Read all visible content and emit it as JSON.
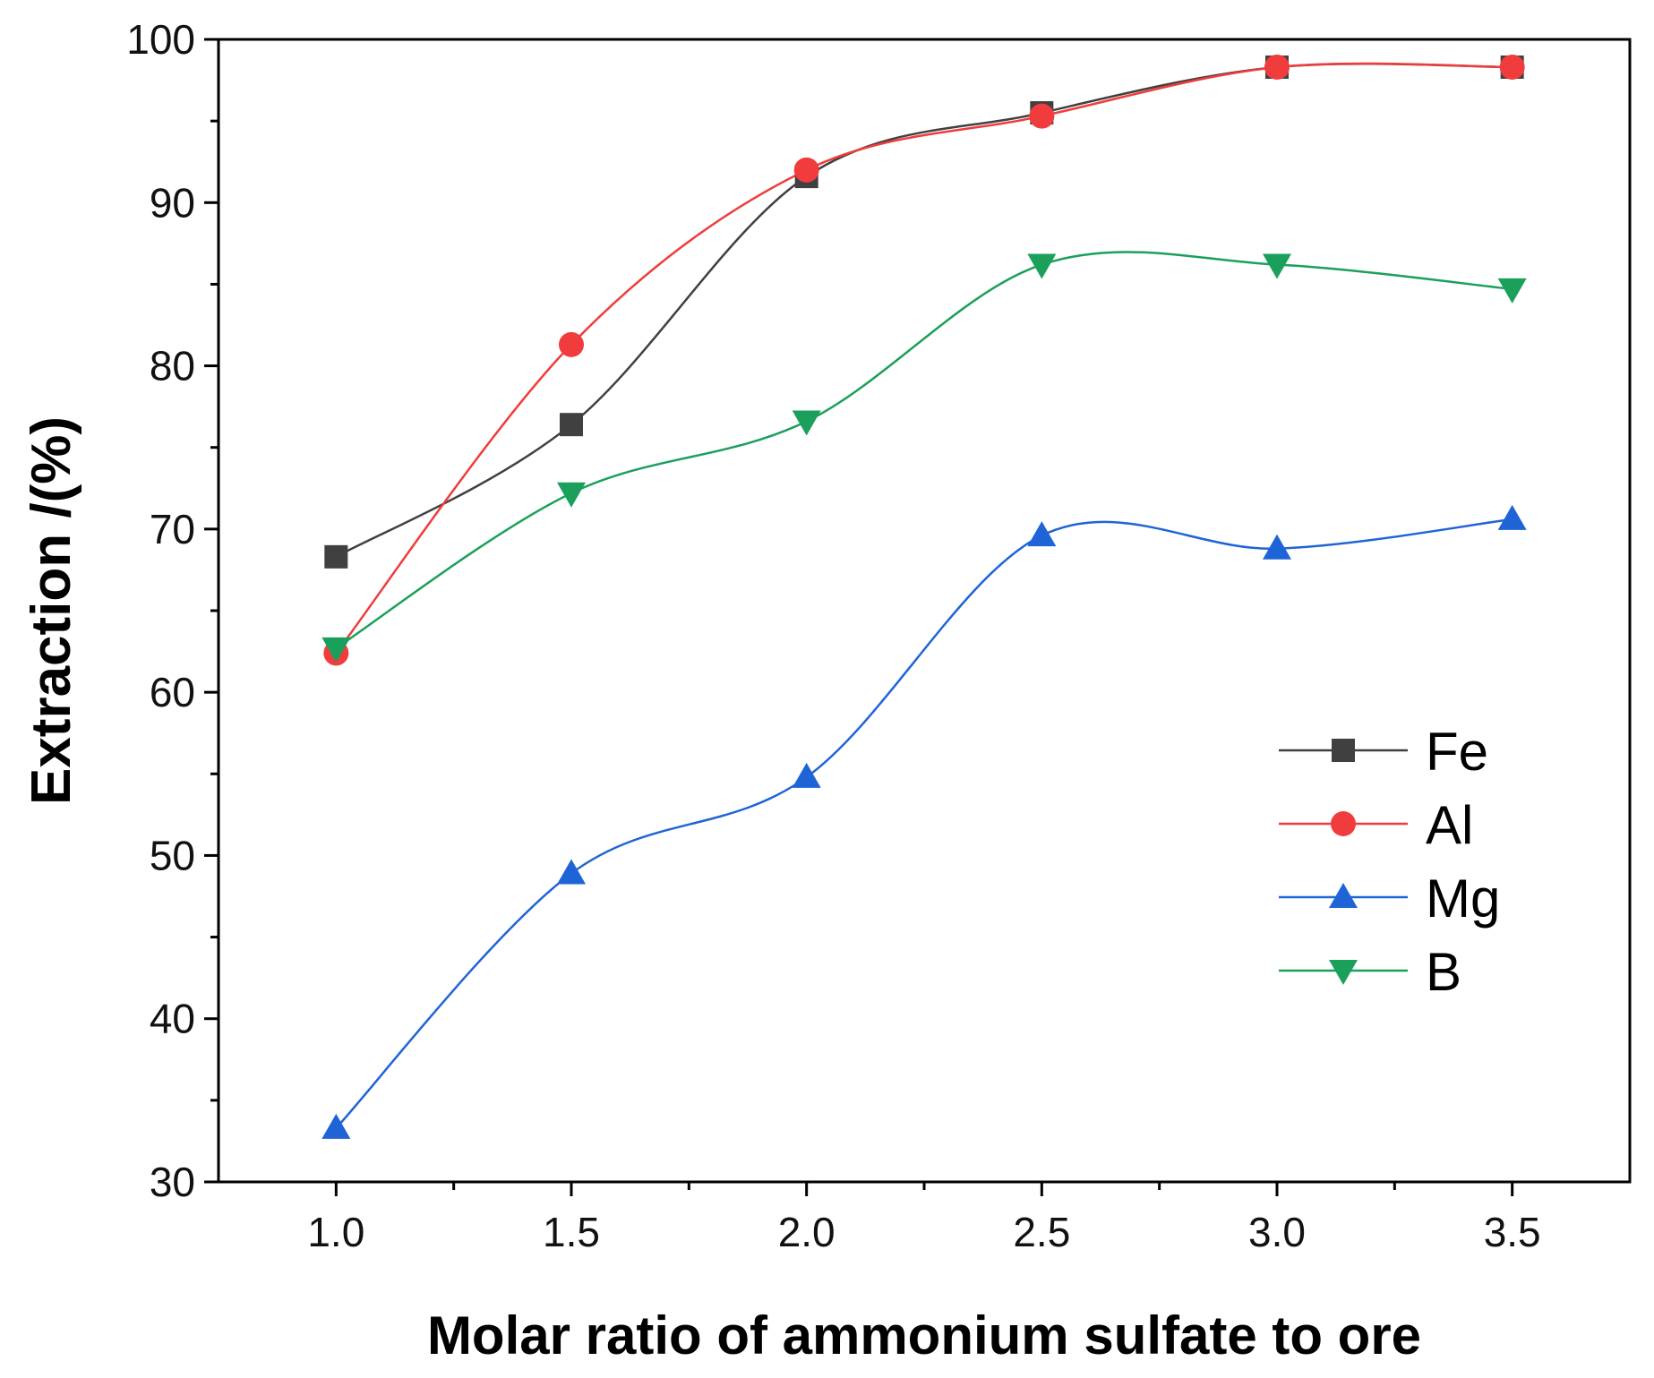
{
  "chart_data": {
    "type": "line",
    "title": "",
    "xlabel": "Molar ratio of ammonium sulfate to ore",
    "ylabel": "Extraction /(%)",
    "xlim": [
      0.75,
      3.75
    ],
    "ylim": [
      30,
      100
    ],
    "x": [
      1.0,
      1.5,
      2.0,
      2.5,
      3.0,
      3.5
    ],
    "x_ticks": [
      "1.0",
      "1.5",
      "2.0",
      "2.5",
      "3.0",
      "3.5"
    ],
    "y_ticks": [
      "30",
      "40",
      "50",
      "60",
      "70",
      "80",
      "90",
      "100"
    ],
    "grid": false,
    "legend_position": "right",
    "series": [
      {
        "name": "Fe",
        "marker": "square",
        "color": "#404040",
        "values": [
          68.3,
          76.4,
          91.6,
          95.5,
          98.3,
          98.3
        ]
      },
      {
        "name": "Al",
        "marker": "circle",
        "color": "#f03c3c",
        "values": [
          62.4,
          81.3,
          92.0,
          95.3,
          98.3,
          98.3
        ]
      },
      {
        "name": "Mg",
        "marker": "triangle-up",
        "color": "#1f64d6",
        "values": [
          33.3,
          48.9,
          54.8,
          69.6,
          68.8,
          70.6
        ]
      },
      {
        "name": "B",
        "marker": "triangle-down",
        "color": "#1aa05a",
        "values": [
          62.7,
          72.2,
          76.6,
          86.2,
          86.2,
          84.7
        ]
      }
    ]
  }
}
